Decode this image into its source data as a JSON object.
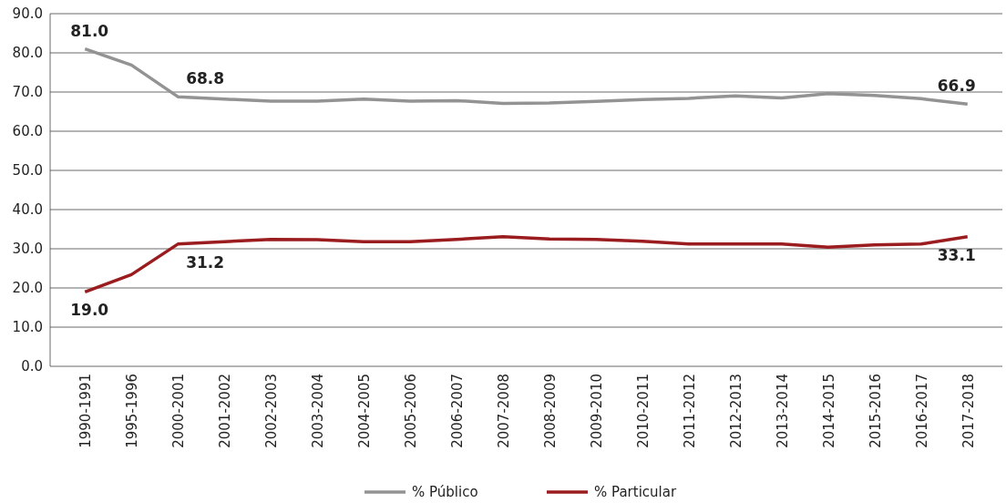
{
  "chart_data": {
    "type": "line",
    "categories": [
      "1990-1991",
      "1995-1996",
      "2000-2001",
      "2001-2002",
      "2002-2003",
      "2003-2004",
      "2004-2005",
      "2005-2006",
      "2006-2007",
      "2007-2008",
      "2008-2009",
      "2009-2010",
      "2010-2011",
      "2011-2012",
      "2012-2013",
      "2013-2014",
      "2014-2015",
      "2015-2016",
      "2016-2017",
      "2017-2018"
    ],
    "series": [
      {
        "name": "% Público",
        "color": "#939393",
        "values": [
          81.0,
          76.9,
          68.8,
          68.2,
          67.7,
          67.7,
          68.2,
          67.7,
          67.8,
          67.1,
          67.2,
          67.6,
          68.1,
          68.4,
          69.0,
          68.5,
          69.6,
          69.1,
          68.3,
          66.9
        ],
        "value_labels": [
          "81.0",
          null,
          "68.8",
          null,
          null,
          null,
          null,
          null,
          null,
          null,
          null,
          null,
          null,
          null,
          null,
          null,
          null,
          null,
          null,
          "66.9"
        ]
      },
      {
        "name": "% Particular",
        "color": "#9b1c1f",
        "values": [
          19.0,
          23.4,
          31.2,
          31.8,
          32.4,
          32.3,
          31.8,
          31.8,
          32.4,
          33.1,
          32.5,
          32.4,
          31.9,
          31.2,
          31.2,
          31.2,
          30.4,
          31.0,
          31.2,
          33.1
        ],
        "value_labels": [
          "19.0",
          null,
          "31.2",
          null,
          null,
          null,
          null,
          null,
          null,
          null,
          null,
          null,
          null,
          null,
          null,
          null,
          null,
          null,
          null,
          "33.1"
        ]
      }
    ],
    "ylim": [
      0,
      90
    ],
    "yticks": [
      {
        "value": 0,
        "label": "0.0"
      },
      {
        "value": 10,
        "label": "10.0"
      },
      {
        "value": 20,
        "label": "20.0"
      },
      {
        "value": 30,
        "label": "30.0"
      },
      {
        "value": 40,
        "label": "40.0"
      },
      {
        "value": 50,
        "label": "50.0"
      },
      {
        "value": 60,
        "label": "60.0"
      },
      {
        "value": 70,
        "label": "70.0"
      },
      {
        "value": 80,
        "label": "80.0"
      },
      {
        "value": 90,
        "label": "90.0"
      }
    ],
    "grid": "y",
    "legend": "bottom",
    "marker": "none",
    "line_style": "solid"
  }
}
